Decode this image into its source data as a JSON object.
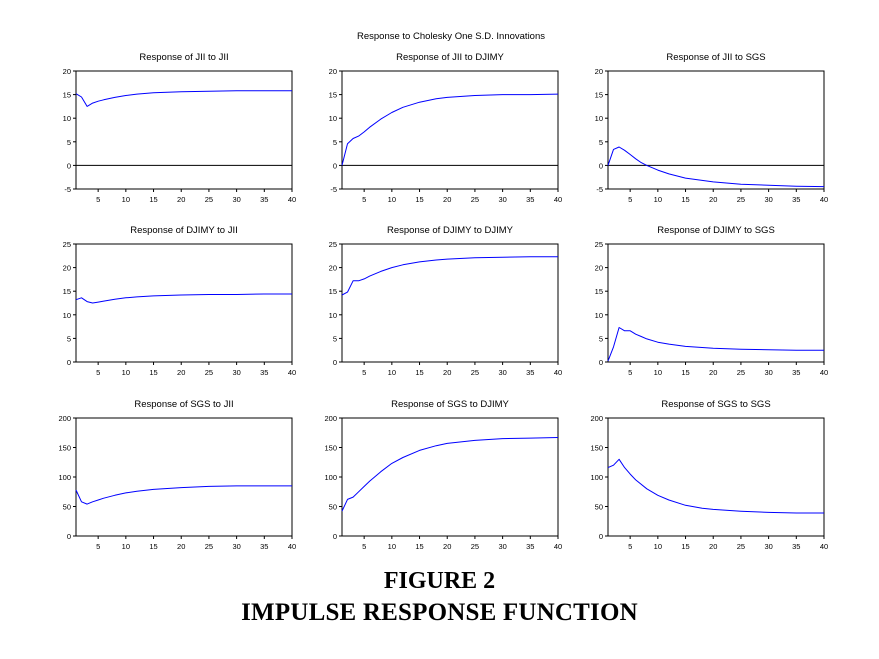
{
  "figure": {
    "suptitle": "Response to Cholesky One S.D. Innovations",
    "caption_number": "FIGURE 2",
    "caption_title": "IMPULSE RESPONSE FUNCTION"
  },
  "colors": {
    "line": "#0000ff",
    "axis": "#000000",
    "zero_line": "#000000",
    "background": "#ffffff"
  },
  "chart_data": [
    {
      "type": "line",
      "title": "Response of JII to JII",
      "xlabel": "",
      "ylabel": "",
      "xlim": [
        1,
        40
      ],
      "ylim": [
        -5,
        20
      ],
      "xticks": [
        5,
        10,
        15,
        20,
        25,
        30,
        35,
        40
      ],
      "yticks": [
        -5,
        0,
        5,
        10,
        15,
        20
      ],
      "zero_line": true,
      "x": [
        1,
        2,
        3,
        4,
        5,
        6,
        8,
        10,
        12,
        15,
        20,
        25,
        30,
        35,
        40
      ],
      "series": [
        {
          "values": [
            15.2,
            14.5,
            12.5,
            13.2,
            13.6,
            13.9,
            14.4,
            14.8,
            15.1,
            15.4,
            15.6,
            15.7,
            15.8,
            15.8,
            15.8
          ]
        }
      ]
    },
    {
      "type": "line",
      "title": "Response of JII to DJIMY",
      "xlabel": "",
      "ylabel": "",
      "xlim": [
        1,
        40
      ],
      "ylim": [
        -5,
        20
      ],
      "xticks": [
        5,
        10,
        15,
        20,
        25,
        30,
        35,
        40
      ],
      "yticks": [
        -5,
        0,
        5,
        10,
        15,
        20
      ],
      "zero_line": true,
      "x": [
        1,
        2,
        3,
        4,
        5,
        6,
        8,
        10,
        12,
        15,
        18,
        20,
        25,
        30,
        35,
        40
      ],
      "series": [
        {
          "values": [
            0.0,
            4.6,
            5.7,
            6.2,
            7.1,
            8.1,
            9.8,
            11.2,
            12.3,
            13.4,
            14.1,
            14.4,
            14.8,
            15.0,
            15.0,
            15.1
          ]
        }
      ]
    },
    {
      "type": "line",
      "title": "Response of JII to SGS",
      "xlabel": "",
      "ylabel": "",
      "xlim": [
        1,
        40
      ],
      "ylim": [
        -5,
        20
      ],
      "xticks": [
        5,
        10,
        15,
        20,
        25,
        30,
        35,
        40
      ],
      "yticks": [
        -5,
        0,
        5,
        10,
        15,
        20
      ],
      "zero_line": true,
      "x": [
        1,
        2,
        3,
        4,
        5,
        6,
        7,
        8,
        10,
        12,
        15,
        20,
        25,
        30,
        35,
        40
      ],
      "series": [
        {
          "values": [
            0.0,
            3.4,
            3.9,
            3.2,
            2.3,
            1.4,
            0.6,
            0.0,
            -1.0,
            -1.8,
            -2.7,
            -3.5,
            -4.0,
            -4.2,
            -4.4,
            -4.5
          ]
        }
      ]
    },
    {
      "type": "line",
      "title": "Response of DJIMY to JII",
      "xlabel": "",
      "ylabel": "",
      "xlim": [
        1,
        40
      ],
      "ylim": [
        0,
        25
      ],
      "xticks": [
        5,
        10,
        15,
        20,
        25,
        30,
        35,
        40
      ],
      "yticks": [
        0,
        5,
        10,
        15,
        20,
        25
      ],
      "zero_line": false,
      "x": [
        1,
        2,
        3,
        4,
        5,
        6,
        8,
        10,
        12,
        15,
        20,
        25,
        30,
        35,
        40
      ],
      "series": [
        {
          "values": [
            13.2,
            13.6,
            12.8,
            12.5,
            12.7,
            12.9,
            13.3,
            13.6,
            13.8,
            14.0,
            14.2,
            14.3,
            14.3,
            14.4,
            14.4
          ]
        }
      ]
    },
    {
      "type": "line",
      "title": "Response of DJIMY to DJIMY",
      "xlabel": "",
      "ylabel": "",
      "xlim": [
        1,
        40
      ],
      "ylim": [
        0,
        25
      ],
      "xticks": [
        5,
        10,
        15,
        20,
        25,
        30,
        35,
        40
      ],
      "yticks": [
        0,
        5,
        10,
        15,
        20,
        25
      ],
      "zero_line": false,
      "x": [
        1,
        2,
        3,
        4,
        5,
        6,
        8,
        10,
        12,
        15,
        18,
        20,
        25,
        30,
        35,
        40
      ],
      "series": [
        {
          "values": [
            14.2,
            14.8,
            17.2,
            17.2,
            17.6,
            18.2,
            19.2,
            20.0,
            20.6,
            21.2,
            21.6,
            21.8,
            22.1,
            22.2,
            22.3,
            22.3
          ]
        }
      ]
    },
    {
      "type": "line",
      "title": "Response of DJIMY to SGS",
      "xlabel": "",
      "ylabel": "",
      "xlim": [
        1,
        40
      ],
      "ylim": [
        0,
        25
      ],
      "xticks": [
        5,
        10,
        15,
        20,
        25,
        30,
        35,
        40
      ],
      "yticks": [
        0,
        5,
        10,
        15,
        20,
        25
      ],
      "zero_line": false,
      "x": [
        1,
        2,
        3,
        4,
        5,
        6,
        7,
        8,
        10,
        12,
        15,
        20,
        25,
        30,
        35,
        40
      ],
      "series": [
        {
          "values": [
            0.2,
            3.2,
            7.3,
            6.6,
            6.6,
            5.9,
            5.4,
            4.9,
            4.2,
            3.8,
            3.3,
            2.9,
            2.7,
            2.6,
            2.5,
            2.5
          ]
        }
      ]
    },
    {
      "type": "line",
      "title": "Response of SGS to JII",
      "xlabel": "",
      "ylabel": "",
      "xlim": [
        1,
        40
      ],
      "ylim": [
        0,
        200
      ],
      "xticks": [
        5,
        10,
        15,
        20,
        25,
        30,
        35,
        40
      ],
      "yticks": [
        0,
        50,
        100,
        150,
        200
      ],
      "zero_line": false,
      "x": [
        1,
        2,
        3,
        4,
        5,
        6,
        8,
        10,
        12,
        15,
        20,
        25,
        30,
        35,
        40
      ],
      "series": [
        {
          "values": [
            78,
            58,
            54,
            58,
            61,
            64,
            69,
            73,
            76,
            79,
            82,
            84,
            85,
            85,
            85
          ]
        }
      ]
    },
    {
      "type": "line",
      "title": "Response of SGS to DJIMY",
      "xlabel": "",
      "ylabel": "",
      "xlim": [
        1,
        40
      ],
      "ylim": [
        0,
        200
      ],
      "xticks": [
        5,
        10,
        15,
        20,
        25,
        30,
        35,
        40
      ],
      "yticks": [
        0,
        50,
        100,
        150,
        200
      ],
      "zero_line": false,
      "x": [
        1,
        2,
        3,
        4,
        5,
        6,
        8,
        10,
        12,
        15,
        18,
        20,
        25,
        30,
        35,
        40
      ],
      "series": [
        {
          "values": [
            42,
            62,
            66,
            75,
            84,
            93,
            109,
            123,
            133,
            145,
            153,
            157,
            162,
            165,
            166,
            167
          ]
        }
      ]
    },
    {
      "type": "line",
      "title": "Response of SGS to SGS",
      "xlabel": "",
      "ylabel": "",
      "xlim": [
        1,
        40
      ],
      "ylim": [
        0,
        200
      ],
      "xticks": [
        5,
        10,
        15,
        20,
        25,
        30,
        35,
        40
      ],
      "yticks": [
        0,
        50,
        100,
        150,
        200
      ],
      "zero_line": false,
      "x": [
        1,
        2,
        3,
        4,
        5,
        6,
        8,
        10,
        12,
        15,
        18,
        20,
        25,
        30,
        35,
        40
      ],
      "series": [
        {
          "values": [
            116,
            120,
            130,
            116,
            105,
            95,
            80,
            69,
            61,
            52,
            47,
            45,
            42,
            40,
            39,
            39
          ]
        }
      ]
    }
  ]
}
